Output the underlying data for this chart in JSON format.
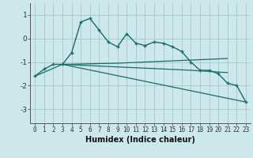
{
  "xlabel": "Humidex (Indice chaleur)",
  "bg_color": "#cce8ea",
  "grid_color": "#aacdd0",
  "line_color": "#1a6b6b",
  "xlim": [
    -0.5,
    23.5
  ],
  "ylim": [
    -3.6,
    1.5
  ],
  "xticks": [
    0,
    1,
    2,
    3,
    4,
    5,
    6,
    7,
    8,
    9,
    10,
    11,
    12,
    13,
    14,
    15,
    16,
    17,
    18,
    19,
    20,
    21,
    22,
    23
  ],
  "yticks": [
    -3,
    -2,
    -1,
    0,
    1
  ],
  "line1_x": [
    0,
    1,
    2,
    3,
    4,
    5,
    6,
    7,
    8,
    9,
    10,
    11,
    12,
    13,
    14,
    15,
    16,
    17,
    18,
    19,
    20,
    21,
    22,
    23
  ],
  "line1_y": [
    -1.6,
    -1.3,
    -1.1,
    -1.1,
    -0.6,
    0.7,
    0.85,
    0.35,
    -0.15,
    -0.35,
    0.2,
    -0.2,
    -0.3,
    -0.15,
    -0.2,
    -0.35,
    -0.55,
    -1.0,
    -1.35,
    -1.35,
    -1.5,
    -1.9,
    -2.0,
    -2.7
  ],
  "line2_x": [
    3,
    9,
    21
  ],
  "line2_y": [
    -1.1,
    -1.05,
    -0.85
  ],
  "line3_x": [
    3,
    17,
    21
  ],
  "line3_y": [
    -1.1,
    -1.35,
    -1.45
  ],
  "line4_x": [
    0,
    3,
    23
  ],
  "line4_y": [
    -1.6,
    -1.1,
    -2.7
  ],
  "marker": "+"
}
